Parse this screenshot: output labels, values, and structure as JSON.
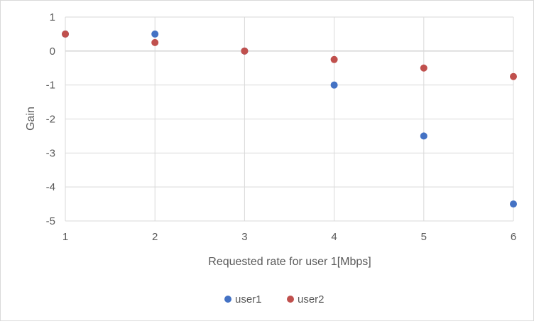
{
  "chart_data": {
    "type": "scatter",
    "title": "",
    "xlabel": "Requested rate for user 1[Mbps]",
    "ylabel": "Gain",
    "xlim": [
      1,
      6
    ],
    "ylim": [
      -5,
      1
    ],
    "x_ticks": [
      1,
      2,
      3,
      4,
      5,
      6
    ],
    "y_ticks": [
      1,
      0,
      -1,
      -2,
      -3,
      -4,
      -5
    ],
    "grid": true,
    "legend_position": "bottom",
    "series": [
      {
        "name": "user1",
        "color": "#4472C4",
        "x": [
          1,
          2,
          3,
          4,
          5,
          6
        ],
        "y": [
          0.5,
          0.5,
          0,
          -1,
          -2.5,
          -4.5
        ]
      },
      {
        "name": "user2",
        "color": "#C0504D",
        "x": [
          1,
          2,
          3,
          4,
          5,
          6
        ],
        "y": [
          0.5,
          0.25,
          0,
          -0.25,
          -0.5,
          -0.75
        ]
      }
    ]
  }
}
